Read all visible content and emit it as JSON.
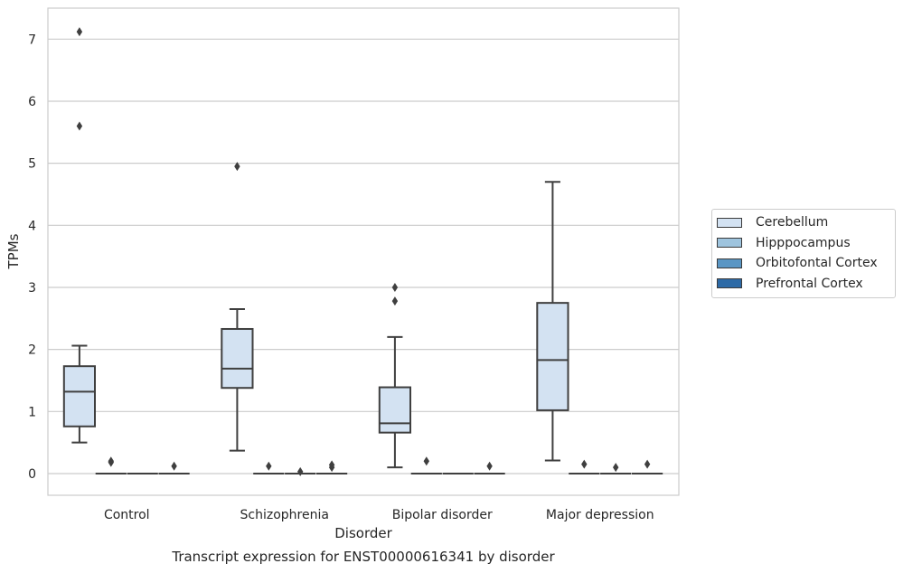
{
  "chart_data": {
    "type": "box",
    "title": "Transcript expression for ENST00000616341 by disorder",
    "xlabel": "Disorder",
    "ylabel": "TPMs",
    "ylim": [
      -0.35,
      7.5
    ],
    "yticks": [
      0,
      1,
      2,
      3,
      4,
      5,
      6,
      7
    ],
    "grid": "y",
    "legend_position": "right",
    "categories": [
      "Control",
      "Schizophrenia",
      "Bipolar disorder",
      "Major depression"
    ],
    "series": [
      {
        "name": "Cerebellum",
        "color": "#d3e2f2",
        "boxes": [
          {
            "whislo": 0.5,
            "q1": 0.76,
            "med": 1.32,
            "q3": 1.73,
            "whishi": 2.06,
            "fliers": [
              5.6,
              7.12
            ]
          },
          {
            "whislo": 0.37,
            "q1": 1.38,
            "med": 1.69,
            "q3": 2.33,
            "whishi": 2.65,
            "fliers": [
              4.95
            ]
          },
          {
            "whislo": 0.1,
            "q1": 0.66,
            "med": 0.81,
            "q3": 1.39,
            "whishi": 2.2,
            "fliers": [
              2.78,
              3.0
            ]
          },
          {
            "whislo": 0.21,
            "q1": 1.02,
            "med": 1.83,
            "q3": 2.75,
            "whishi": 4.7,
            "fliers": []
          }
        ]
      },
      {
        "name": "Hipppocampus",
        "color": "#9ec4de",
        "boxes": [
          {
            "whislo": 0,
            "q1": 0,
            "med": 0,
            "q3": 0,
            "whishi": 0,
            "fliers": [
              0.18,
              0.2
            ]
          },
          {
            "whislo": 0,
            "q1": 0,
            "med": 0,
            "q3": 0,
            "whishi": 0,
            "fliers": [
              0.12
            ]
          },
          {
            "whislo": 0,
            "q1": 0,
            "med": 0,
            "q3": 0,
            "whishi": 0,
            "fliers": [
              0.2
            ]
          },
          {
            "whislo": 0,
            "q1": 0,
            "med": 0,
            "q3": 0,
            "whishi": 0,
            "fliers": [
              0.15
            ]
          }
        ]
      },
      {
        "name": "Orbitofontal Cortex",
        "color": "#5a96c4",
        "boxes": [
          {
            "whislo": 0,
            "q1": 0,
            "med": 0,
            "q3": 0,
            "whishi": 0,
            "fliers": []
          },
          {
            "whislo": 0,
            "q1": 0,
            "med": 0,
            "q3": 0,
            "whishi": 0,
            "fliers": [
              0.03
            ]
          },
          {
            "whislo": 0,
            "q1": 0,
            "med": 0,
            "q3": 0,
            "whishi": 0,
            "fliers": []
          },
          {
            "whislo": 0,
            "q1": 0,
            "med": 0,
            "q3": 0,
            "whishi": 0,
            "fliers": [
              0.1
            ]
          }
        ]
      },
      {
        "name": "Prefrontal Cortex",
        "color": "#2d6aa6",
        "boxes": [
          {
            "whislo": 0,
            "q1": 0,
            "med": 0,
            "q3": 0,
            "whishi": 0,
            "fliers": [
              0.12
            ]
          },
          {
            "whislo": 0,
            "q1": 0,
            "med": 0,
            "q3": 0,
            "whishi": 0,
            "fliers": [
              0.1,
              0.14
            ]
          },
          {
            "whislo": 0,
            "q1": 0,
            "med": 0,
            "q3": 0,
            "whishi": 0,
            "fliers": [
              0.12
            ]
          },
          {
            "whislo": 0,
            "q1": 0,
            "med": 0,
            "q3": 0,
            "whishi": 0,
            "fliers": [
              0.15
            ]
          }
        ]
      }
    ]
  }
}
